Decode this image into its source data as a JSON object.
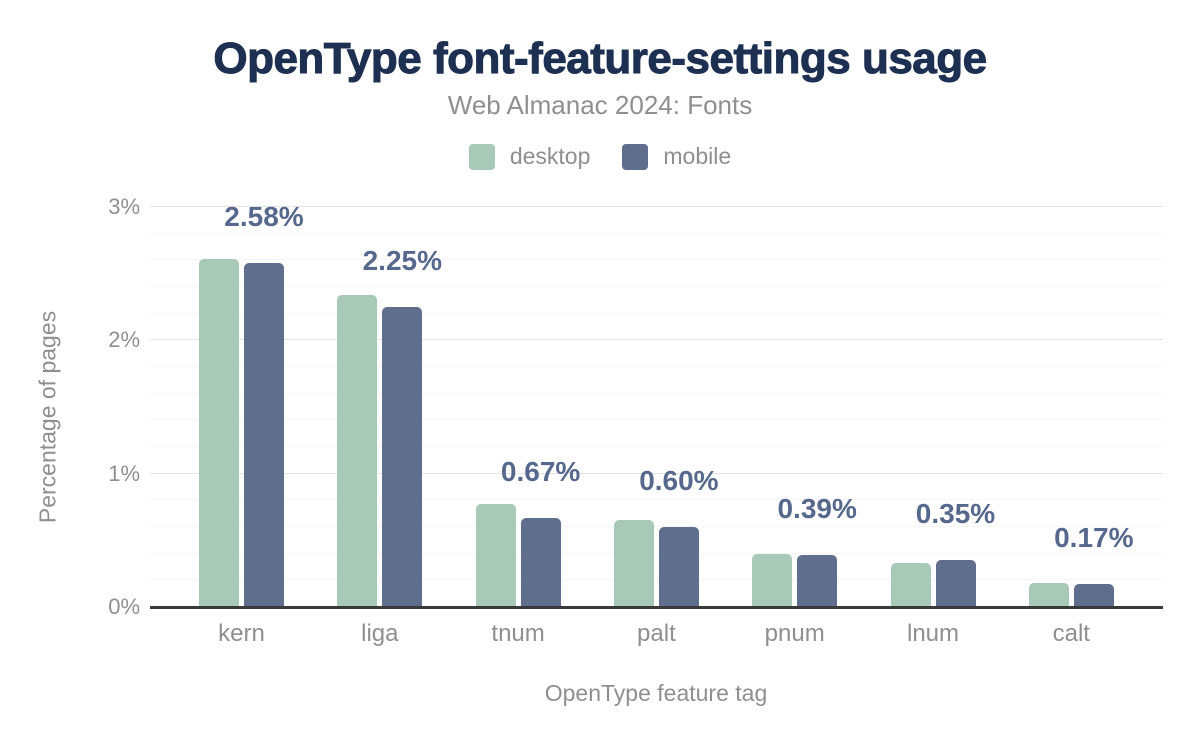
{
  "chart_data": {
    "type": "bar",
    "title": "OpenType font-feature-settings usage",
    "subtitle": "Web Almanac 2024: Fonts",
    "categories": [
      "kern",
      "liga",
      "tnum",
      "palt",
      "pnum",
      "lnum",
      "calt"
    ],
    "series": [
      {
        "name": "desktop",
        "values": [
          2.61,
          2.34,
          0.77,
          0.65,
          0.4,
          0.33,
          0.18
        ]
      },
      {
        "name": "mobile",
        "values": [
          2.58,
          2.25,
          0.67,
          0.6,
          0.39,
          0.35,
          0.17
        ]
      }
    ],
    "bar_labels": [
      "2.58%",
      "2.25%",
      "0.67%",
      "0.60%",
      "0.39%",
      "0.35%",
      "0.17%"
    ],
    "bar_labels_series": "mobile",
    "xlabel": "OpenType feature tag",
    "ylabel": "Percentage of pages",
    "ylim": [
      0,
      3
    ],
    "yticks": [
      {
        "value": 0,
        "label": "0%"
      },
      {
        "value": 1,
        "label": "1%"
      },
      {
        "value": 2,
        "label": "2%"
      },
      {
        "value": 3,
        "label": "3%"
      }
    ],
    "grid": "on",
    "grid_minor_step": 0.2,
    "legend_position": "top",
    "colors": {
      "desktop": "#a8c9b8",
      "mobile": "#5e6e8c",
      "bar_label": "#56698d",
      "title": "#1d3052",
      "muted_text": "#8f8f8f",
      "grid_major": "#e5e5e5",
      "grid_minor": "#f5f5f5",
      "axis_line": "#3a3a3a"
    }
  }
}
